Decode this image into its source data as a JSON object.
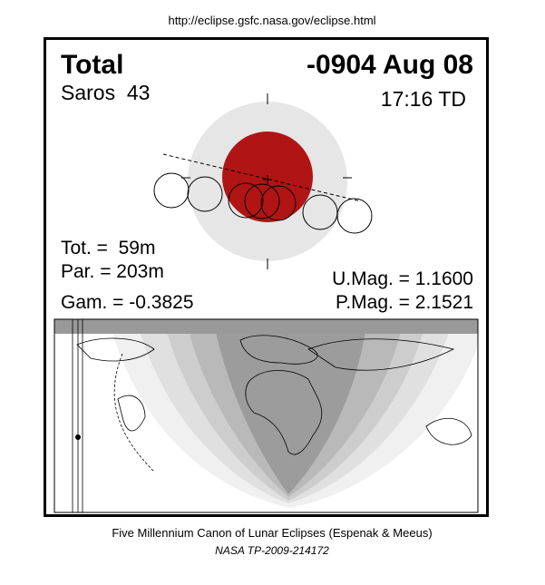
{
  "header": {
    "url": "http://eclipse.gsfc.nasa.gov/eclipse.html"
  },
  "panel": {
    "eclipse_type": "Total",
    "date": "-0904 Aug 08",
    "saros": "Saros  43",
    "time": "17:16 TD",
    "totality": "Tot. =  59m",
    "partiality": "Par. = 203m",
    "gamma": "Gam. = -0.3825",
    "umbral_magnitude": "U.Mag. = 1.1600",
    "penumbral_magnitude": "P.Mag. = 2.1521"
  },
  "footer": {
    "canon": "Five Millennium Canon of Lunar Eclipses (Espenak & Meeus)",
    "publication": "NASA TP-2009-214172"
  }
}
